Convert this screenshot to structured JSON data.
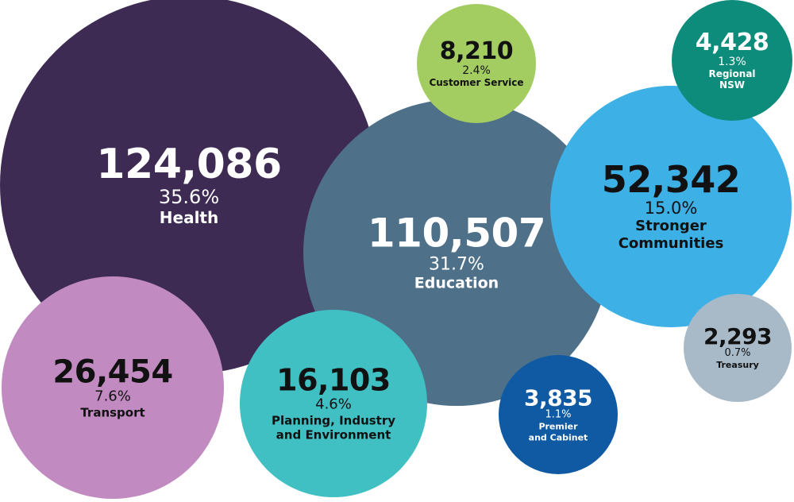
{
  "chart_data": {
    "type": "bubble",
    "items": [
      {
        "label": "Health",
        "value": "124,086",
        "percent": "35.6%",
        "color": "#3d2b53",
        "text_color": "#ffffff"
      },
      {
        "label": "Education",
        "value": "110,507",
        "percent": "31.7%",
        "color": "#4e7089",
        "text_color": "#ffffff"
      },
      {
        "label": "Stronger\nCommunities",
        "value": "52,342",
        "percent": "15.0%",
        "color": "#3db0e6",
        "text_color": "#111111"
      },
      {
        "label": "Transport",
        "value": "26,454",
        "percent": "7.6%",
        "color": "#c18ac0",
        "text_color": "#111111"
      },
      {
        "label": "Planning, Industry\nand Environment",
        "value": "16,103",
        "percent": "4.6%",
        "color": "#40c0c3",
        "text_color": "#111111"
      },
      {
        "label": "Customer Service",
        "value": "8,210",
        "percent": "2.4%",
        "color": "#a3cd61",
        "text_color": "#111111"
      },
      {
        "label": "Regional NSW",
        "value": "4,428",
        "percent": "1.3%",
        "color": "#0d8b7b",
        "text_color": "#ffffff"
      },
      {
        "label": "Premier\nand Cabinet",
        "value": "3,835",
        "percent": "1.1%",
        "color": "#0f5aa3",
        "text_color": "#ffffff"
      },
      {
        "label": "Treasury",
        "value": "2,293",
        "percent": "0.7%",
        "color": "#a8b9c8",
        "text_color": "#111111"
      }
    ]
  }
}
